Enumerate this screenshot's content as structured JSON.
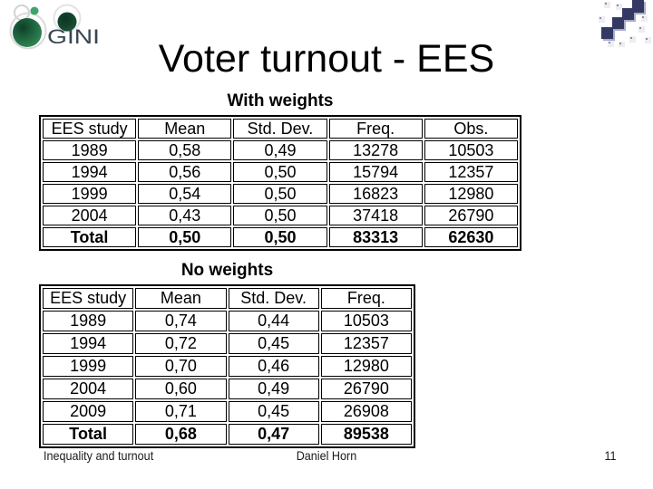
{
  "logo": {
    "text": "GINI"
  },
  "title": "Voter turnout - EES",
  "tables": [
    {
      "caption": "With weights",
      "headers": [
        "EES study",
        "Mean",
        "Std. Dev.",
        "Freq.",
        "Obs."
      ],
      "rows": [
        [
          "1989",
          "0,58",
          "0,49",
          "13278",
          "10503"
        ],
        [
          "1994",
          "0,56",
          "0,50",
          "15794",
          "12357"
        ],
        [
          "1999",
          "0,54",
          "0,50",
          "16823",
          "12980"
        ],
        [
          "2004",
          "0,43",
          "0,50",
          "37418",
          "26790"
        ],
        [
          "Total",
          "0,50",
          "0,50",
          "83313",
          "62630"
        ]
      ]
    },
    {
      "caption": "No weights",
      "headers": [
        "EES study",
        "Mean",
        "Std. Dev.",
        "Freq."
      ],
      "rows": [
        [
          "1989",
          "0,74",
          "0,44",
          "10503"
        ],
        [
          "1994",
          "0,72",
          "0,45",
          "12357"
        ],
        [
          "1999",
          "0,70",
          "0,46",
          "12980"
        ],
        [
          "2004",
          "0,60",
          "0,49",
          "26790"
        ],
        [
          "2009",
          "0,71",
          "0,45",
          "26908"
        ],
        [
          "Total",
          "0,68",
          "0,47",
          "89538"
        ]
      ]
    }
  ],
  "footer": {
    "left": "Inequality and turnout",
    "center": "Daniel Horn",
    "page": "11"
  },
  "colors": {
    "logo_green_dark": "#0d4027",
    "logo_green_light": "#36925e",
    "pattern_navy": "#333963",
    "pattern_light": "#ededf2"
  }
}
